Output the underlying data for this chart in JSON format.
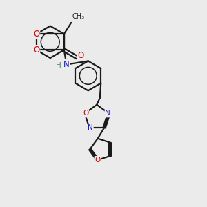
{
  "bg_color": "#ebebeb",
  "bond_color": "#1a1a1a",
  "oxygen_color": "#cc0000",
  "nitrogen_color": "#1a1acc",
  "hydrogen_color": "#3a8a8a",
  "line_width": 1.6,
  "font_size": 8.5,
  "fig_size": [
    3.0,
    3.0
  ],
  "dpi": 100,
  "xlim": [
    0,
    10
  ],
  "ylim": [
    0,
    10
  ]
}
